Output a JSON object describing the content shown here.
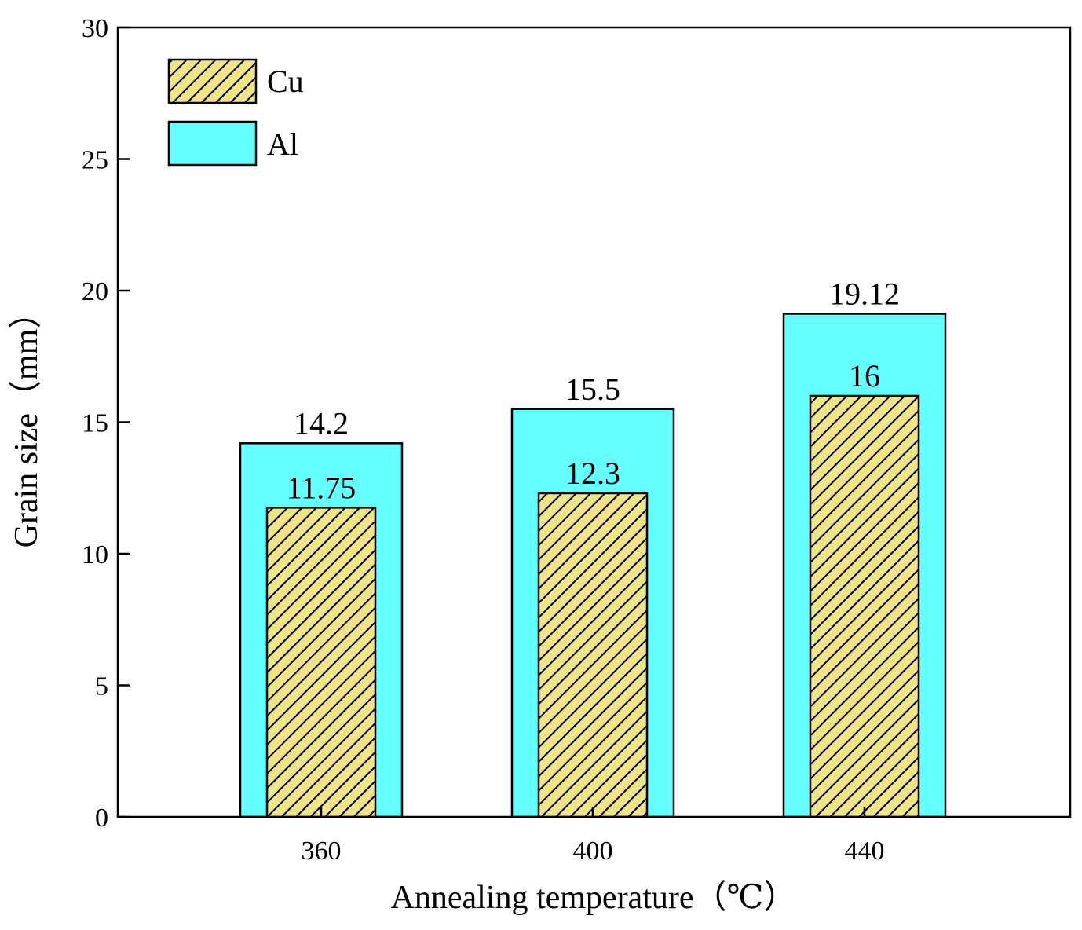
{
  "chart_data": {
    "type": "bar",
    "layout": "overlapping",
    "categories": [
      "360",
      "400",
      "440"
    ],
    "series": [
      {
        "name": "Al",
        "values": [
          14.2,
          15.5,
          19.12
        ],
        "labels": [
          "14.2",
          "15.5",
          "19.12"
        ],
        "fill": "#66ffff",
        "pattern": "solid"
      },
      {
        "name": "Cu",
        "values": [
          11.75,
          12.3,
          16
        ],
        "labels": [
          "11.75",
          "12.3",
          "16"
        ],
        "fill": "#efe48a",
        "pattern": "hatch"
      }
    ],
    "xlabel": "Annealing temperature（℃）",
    "ylabel": "Grain size（mm）",
    "ylim": [
      0,
      30
    ],
    "yticks": [
      "0",
      "5",
      "10",
      "15",
      "20",
      "25",
      "30"
    ],
    "legend_position": "top-left",
    "grid": false
  }
}
